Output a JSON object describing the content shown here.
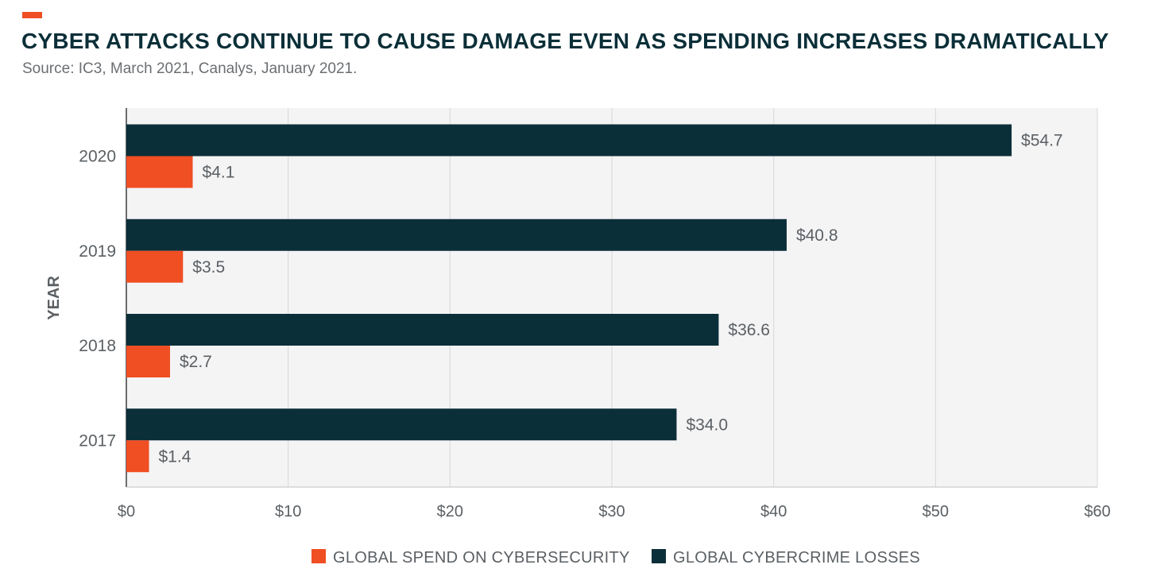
{
  "header": {
    "title": "CYBER ATTACKS CONTINUE TO CAUSE DAMAGE EVEN AS SPENDING INCREASES DRAMATICALLY",
    "subtitle": "Source: IC3, March 2021, Canalys, January 2021."
  },
  "colors": {
    "accent": "#f04e23",
    "losses": "#0b2f38",
    "plot_bg": "#f4f4f5",
    "grid": "#d6d7d8"
  },
  "chart_data": {
    "type": "bar",
    "orientation": "horizontal",
    "title": "CYBER ATTACKS CONTINUE TO CAUSE DAMAGE EVEN AS SPENDING INCREASES DRAMATICALLY",
    "ylabel": "YEAR",
    "xlabel": "",
    "categories": [
      "2020",
      "2019",
      "2018",
      "2017"
    ],
    "series": [
      {
        "name": "GLOBAL CYBERCRIME LOSSES",
        "values": [
          54.7,
          40.8,
          36.6,
          34.0
        ],
        "labels": [
          "$54.7",
          "$40.8",
          "$36.6",
          "$34.0"
        ],
        "color": "#0b2f38"
      },
      {
        "name": "GLOBAL SPEND ON CYBERSECURITY",
        "values": [
          4.1,
          3.5,
          2.7,
          1.4
        ],
        "labels": [
          "$4.1",
          "$3.5",
          "$2.7",
          "$1.4"
        ],
        "color": "#f04e23"
      }
    ],
    "xlim": [
      0,
      60
    ],
    "xticks": [
      0,
      10,
      20,
      30,
      40,
      50,
      60
    ],
    "xtick_labels": [
      "$0",
      "$10",
      "$20",
      "$30",
      "$40",
      "$50",
      "$60"
    ],
    "grid": true,
    "legend": [
      "GLOBAL SPEND ON CYBERSECURITY",
      "GLOBAL CYBERCRIME LOSSES"
    ],
    "legend_position": "bottom-center"
  }
}
